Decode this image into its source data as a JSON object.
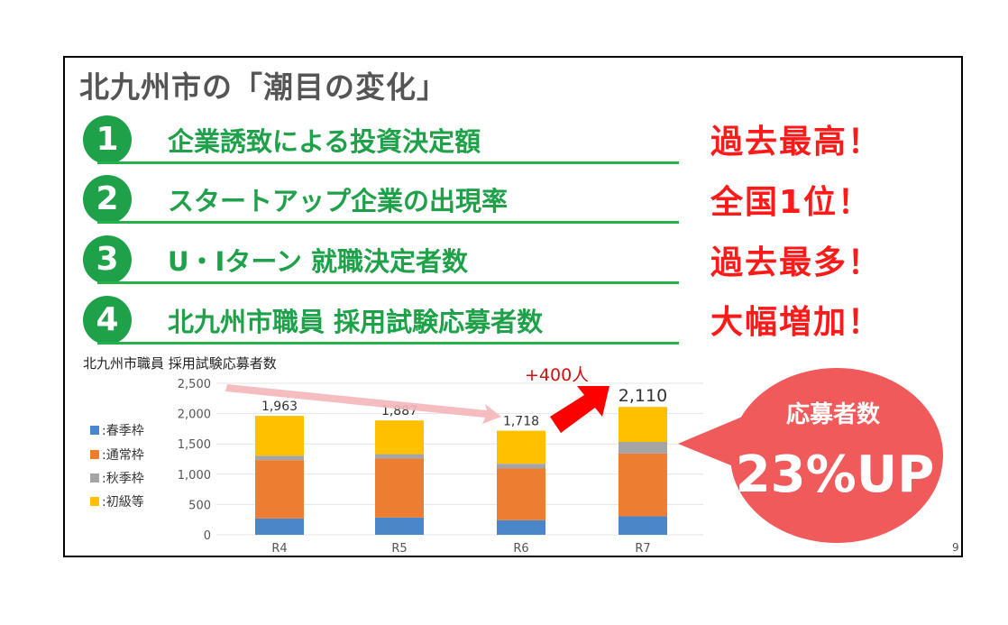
{
  "title": "北九州市の「潮目の変化」",
  "rows": [
    {
      "num": "1",
      "text": "企業誘致による投資決定額",
      "badge": "過去最高！"
    },
    {
      "num": "2",
      "text": "スタートアップ企業の出現率",
      "badge": "全国1位！"
    },
    {
      "num": "3",
      "text": "U・Iターン 就職決定者数",
      "badge": "過去最多！"
    },
    {
      "num": "4",
      "text": "北九州市職員 採用試験応募者数",
      "badge": "大幅増加！"
    }
  ],
  "callout": {
    "line1": "応募者数",
    "line2": "23%UP"
  },
  "increase_label": "+400人",
  "page_number": "9",
  "chart_data": {
    "type": "bar",
    "stacked": true,
    "title": "北九州市職員 採用試験応募者数",
    "categories": [
      "R4",
      "R5",
      "R6",
      "R7"
    ],
    "series": [
      {
        "name": ":春季枠",
        "color": "#4a86c8",
        "values": [
          270,
          286,
          242,
          306
        ]
      },
      {
        "name": ":通常枠",
        "color": "#ed7d31",
        "values": [
          963,
          971,
          852,
          1035
        ]
      },
      {
        "name": ":秋季枠",
        "color": "#a5a5a5",
        "values": [
          73,
          74,
          79,
          192
        ]
      },
      {
        "name": ":初級等",
        "color": "#ffc000",
        "values": [
          657,
          556,
          545,
          577
        ]
      }
    ],
    "totals": [
      "1,963",
      "1,887",
      "1,718",
      "2,110"
    ],
    "ylim": [
      0,
      2500
    ],
    "yticks": [
      "0",
      "500",
      "1,000",
      "1,500",
      "2,000",
      "2,500"
    ],
    "grid": true,
    "legend": "left"
  }
}
